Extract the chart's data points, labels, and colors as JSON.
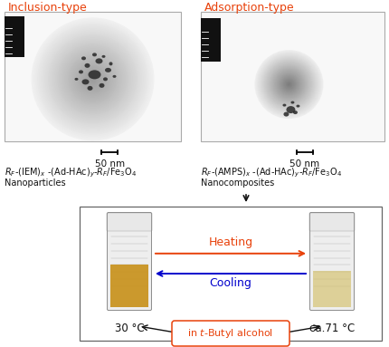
{
  "title_left": "Inclusion-type",
  "title_right": "Adsorption-type",
  "title_color": "#e8410a",
  "scale_bar_text": "50 nm",
  "caption_left_1": "R_F-(IEM)_x -(Ad-HAc)_y-R_F/Fe_3O_4",
  "caption_left_2": "Nanoparticles",
  "caption_right_1": "R_F-(AMPS)_x -(Ad-HAc)_y-R_F/Fe_3O_4",
  "caption_right_2": "Nanocomposites",
  "heating_text": "Heating",
  "cooling_text": "Cooling",
  "heating_color": "#e8410a",
  "cooling_color": "#0000cc",
  "temp_left": "30 °C",
  "temp_right": "ca.71 °C",
  "butyl_text": "in t-Butyl alcohol",
  "butyl_color": "#e8410a",
  "bg_color": "#ffffff",
  "panel_bg": "#f5f5f5",
  "panel_edge": "#888888"
}
